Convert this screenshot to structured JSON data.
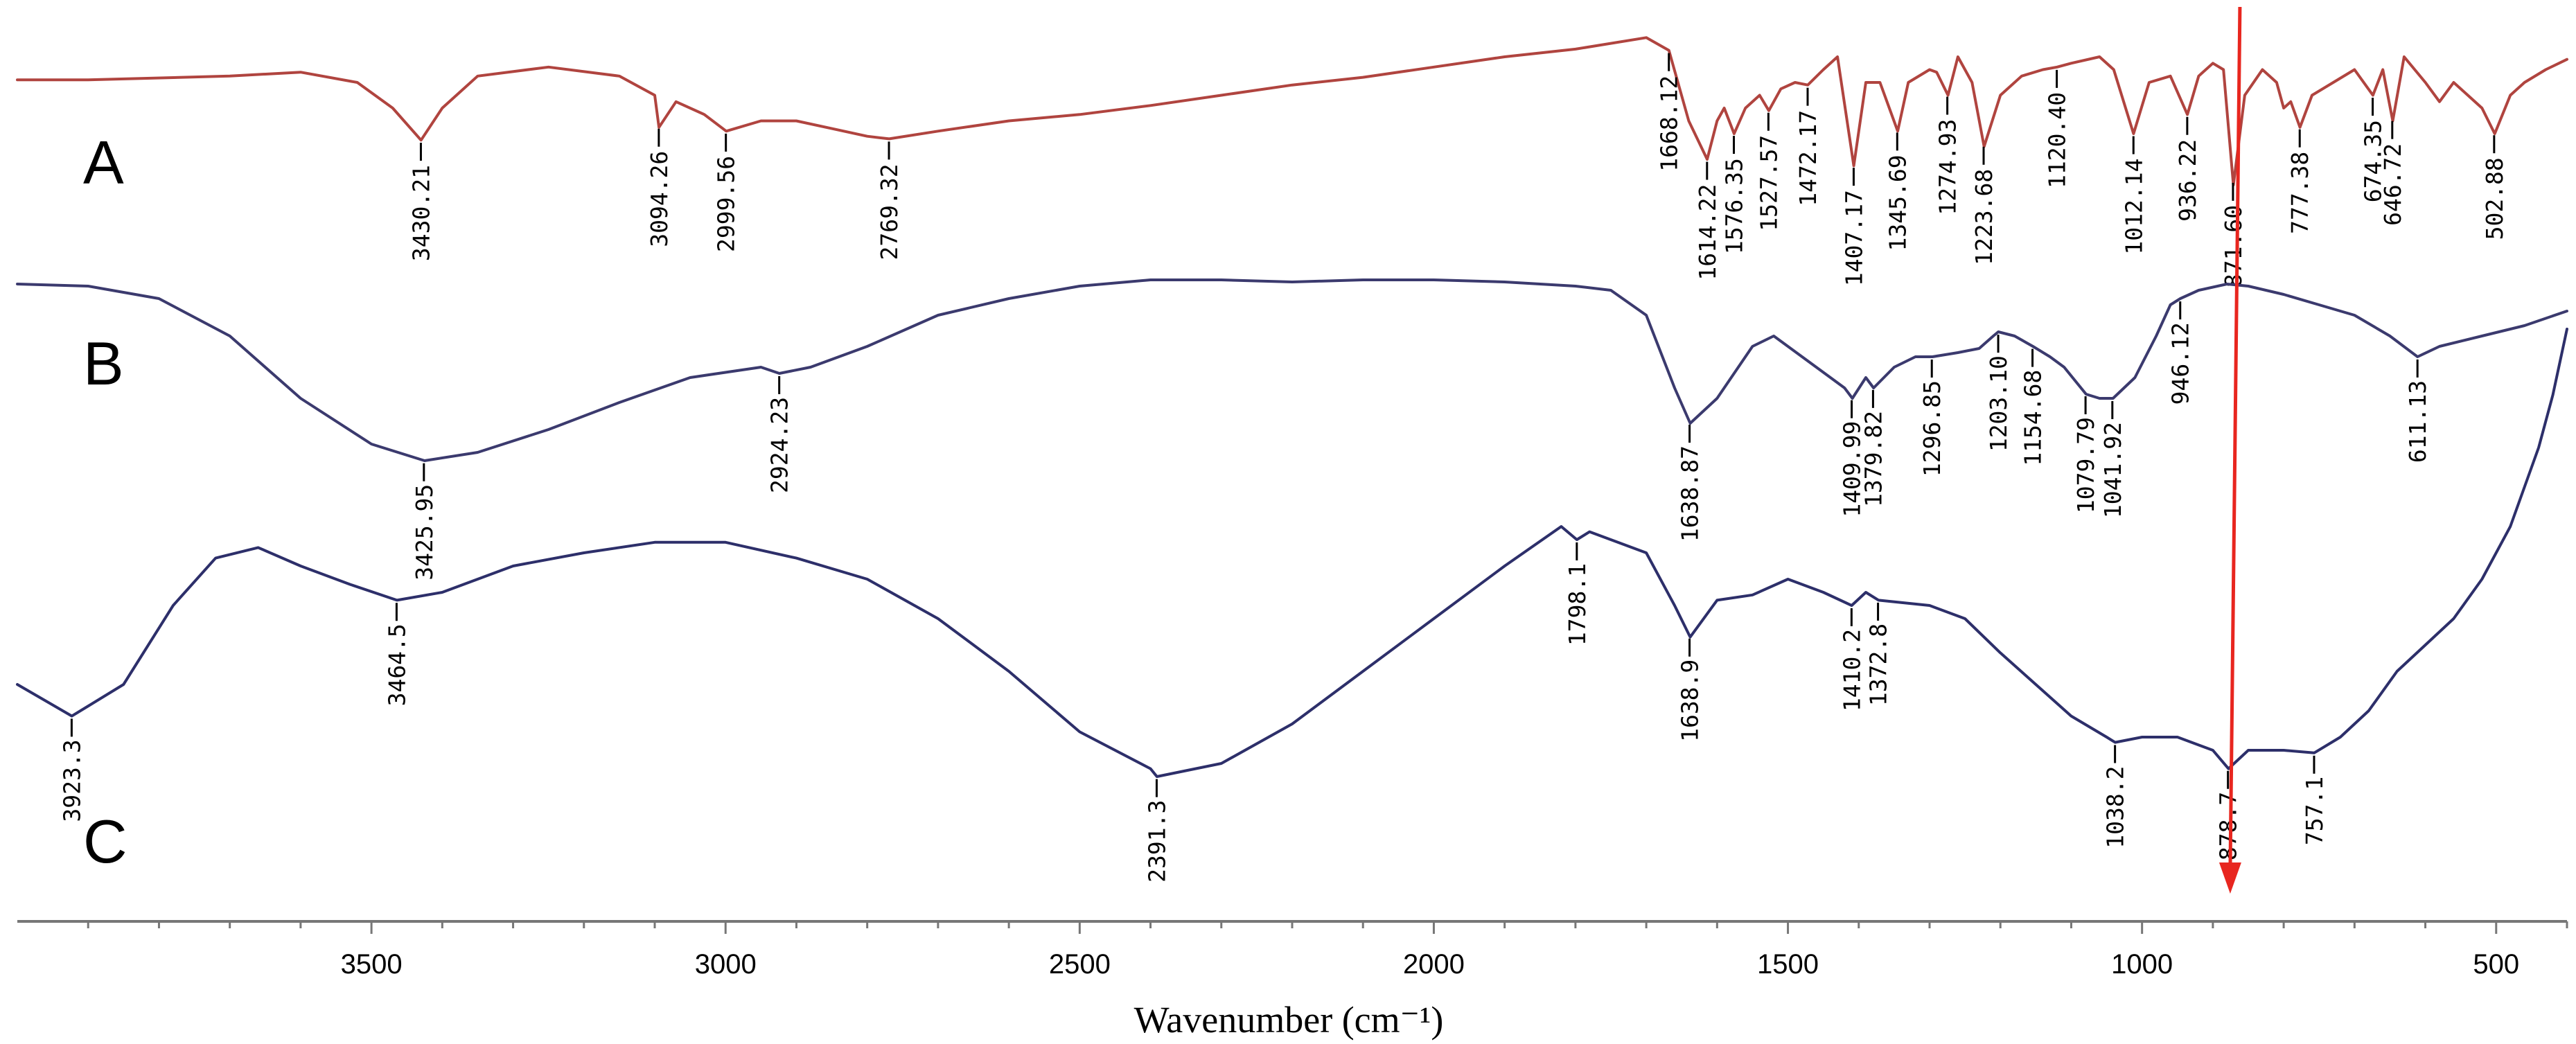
{
  "chart_data": {
    "type": "line",
    "title": "",
    "xlabel": "Wavenumber (cm⁻¹)",
    "ylabel": "",
    "xlim": [
      4000,
      400
    ],
    "x_reversed": true,
    "x_ticks": [
      3500,
      3000,
      2500,
      2000,
      1500,
      1000,
      500
    ],
    "y_axis_shown": false,
    "grid": false,
    "marker_line": {
      "value": 871.6,
      "color": "#e8261f"
    },
    "series": [
      {
        "name": "A",
        "color": "#b0443f",
        "points": [
          [
            4000,
            0.38
          ],
          [
            3900,
            0.38
          ],
          [
            3700,
            0.35
          ],
          [
            3600,
            0.32
          ],
          [
            3520,
            0.4
          ],
          [
            3470,
            0.6
          ],
          [
            3430,
            0.85
          ],
          [
            3400,
            0.6
          ],
          [
            3350,
            0.35
          ],
          [
            3250,
            0.28
          ],
          [
            3150,
            0.35
          ],
          [
            3100,
            0.5
          ],
          [
            3094,
            0.75
          ],
          [
            3070,
            0.55
          ],
          [
            3030,
            0.65
          ],
          [
            2999,
            0.78
          ],
          [
            2950,
            0.7
          ],
          [
            2900,
            0.7
          ],
          [
            2850,
            0.76
          ],
          [
            2800,
            0.82
          ],
          [
            2769,
            0.84
          ],
          [
            2700,
            0.78
          ],
          [
            2600,
            0.7
          ],
          [
            2500,
            0.65
          ],
          [
            2400,
            0.58
          ],
          [
            2300,
            0.5
          ],
          [
            2200,
            0.42
          ],
          [
            2100,
            0.36
          ],
          [
            2000,
            0.28
          ],
          [
            1900,
            0.2
          ],
          [
            1800,
            0.14
          ],
          [
            1700,
            0.05
          ],
          [
            1668,
            0.15
          ],
          [
            1640,
            0.7
          ],
          [
            1614,
            1.0
          ],
          [
            1600,
            0.7
          ],
          [
            1590,
            0.6
          ],
          [
            1576,
            0.8
          ],
          [
            1560,
            0.6
          ],
          [
            1540,
            0.5
          ],
          [
            1527,
            0.62
          ],
          [
            1510,
            0.45
          ],
          [
            1490,
            0.4
          ],
          [
            1472,
            0.42
          ],
          [
            1450,
            0.3
          ],
          [
            1430,
            0.2
          ],
          [
            1407,
            1.05
          ],
          [
            1390,
            0.4
          ],
          [
            1370,
            0.4
          ],
          [
            1345,
            0.78
          ],
          [
            1330,
            0.4
          ],
          [
            1300,
            0.3
          ],
          [
            1290,
            0.32
          ],
          [
            1274,
            0.5
          ],
          [
            1260,
            0.2
          ],
          [
            1240,
            0.4
          ],
          [
            1223,
            0.9
          ],
          [
            1200,
            0.5
          ],
          [
            1170,
            0.35
          ],
          [
            1140,
            0.3
          ],
          [
            1120,
            0.28
          ],
          [
            1100,
            0.25
          ],
          [
            1060,
            0.2
          ],
          [
            1040,
            0.3
          ],
          [
            1012,
            0.8
          ],
          [
            990,
            0.4
          ],
          [
            960,
            0.35
          ],
          [
            936,
            0.65
          ],
          [
            920,
            0.35
          ],
          [
            900,
            0.25
          ],
          [
            885,
            0.3
          ],
          [
            871,
            1.2
          ],
          [
            855,
            0.5
          ],
          [
            830,
            0.3
          ],
          [
            810,
            0.4
          ],
          [
            800,
            0.6
          ],
          [
            790,
            0.55
          ],
          [
            777,
            0.75
          ],
          [
            760,
            0.5
          ],
          [
            730,
            0.4
          ],
          [
            700,
            0.3
          ],
          [
            674,
            0.5
          ],
          [
            660,
            0.3
          ],
          [
            646,
            0.7
          ],
          [
            630,
            0.2
          ],
          [
            600,
            0.4
          ],
          [
            580,
            0.55
          ],
          [
            560,
            0.4
          ],
          [
            540,
            0.5
          ],
          [
            520,
            0.6
          ],
          [
            502,
            0.8
          ],
          [
            480,
            0.5
          ],
          [
            460,
            0.4
          ],
          [
            430,
            0.3
          ],
          [
            400,
            0.22
          ]
        ],
        "peaks": [
          {
            "x": 3430.21,
            "label": "3430.21"
          },
          {
            "x": 3094.26,
            "label": "3094.26"
          },
          {
            "x": 2999.56,
            "label": "2999.56"
          },
          {
            "x": 2769.32,
            "label": "2769.32"
          },
          {
            "x": 1668.12,
            "label": "1668.12"
          },
          {
            "x": 1614.22,
            "label": "1614.22"
          },
          {
            "x": 1576.35,
            "label": "1576.35"
          },
          {
            "x": 1527.57,
            "label": "1527.57"
          },
          {
            "x": 1472.17,
            "label": "1472.17"
          },
          {
            "x": 1407.17,
            "label": "1407.17"
          },
          {
            "x": 1345.69,
            "label": "1345.69"
          },
          {
            "x": 1274.93,
            "label": "1274.93"
          },
          {
            "x": 1223.68,
            "label": "1223.68"
          },
          {
            "x": 1120.4,
            "label": "1120.40"
          },
          {
            "x": 1012.14,
            "label": "1012.14"
          },
          {
            "x": 936.22,
            "label": "936.22"
          },
          {
            "x": 871.6,
            "label": "871.60"
          },
          {
            "x": 777.38,
            "label": "777.38"
          },
          {
            "x": 674.35,
            "label": "674.35"
          },
          {
            "x": 646.72,
            "label": "646.72"
          },
          {
            "x": 502.88,
            "label": "502.88"
          }
        ]
      },
      {
        "name": "B",
        "color": "#3b3a6e",
        "points": [
          [
            4000,
            0.05
          ],
          [
            3900,
            0.06
          ],
          [
            3800,
            0.12
          ],
          [
            3700,
            0.3
          ],
          [
            3600,
            0.6
          ],
          [
            3500,
            0.82
          ],
          [
            3425,
            0.9
          ],
          [
            3350,
            0.86
          ],
          [
            3250,
            0.75
          ],
          [
            3150,
            0.62
          ],
          [
            3050,
            0.5
          ],
          [
            2950,
            0.45
          ],
          [
            2924,
            0.48
          ],
          [
            2880,
            0.45
          ],
          [
            2800,
            0.35
          ],
          [
            2700,
            0.2
          ],
          [
            2600,
            0.12
          ],
          [
            2500,
            0.06
          ],
          [
            2400,
            0.03
          ],
          [
            2300,
            0.03
          ],
          [
            2200,
            0.04
          ],
          [
            2100,
            0.03
          ],
          [
            2000,
            0.03
          ],
          [
            1900,
            0.04
          ],
          [
            1800,
            0.06
          ],
          [
            1750,
            0.08
          ],
          [
            1700,
            0.2
          ],
          [
            1660,
            0.55
          ],
          [
            1638,
            0.72
          ],
          [
            1600,
            0.6
          ],
          [
            1550,
            0.35
          ],
          [
            1520,
            0.3
          ],
          [
            1480,
            0.4
          ],
          [
            1440,
            0.5
          ],
          [
            1420,
            0.55
          ],
          [
            1409,
            0.6
          ],
          [
            1390,
            0.5
          ],
          [
            1379,
            0.55
          ],
          [
            1350,
            0.45
          ],
          [
            1320,
            0.4
          ],
          [
            1296,
            0.4
          ],
          [
            1260,
            0.38
          ],
          [
            1230,
            0.36
          ],
          [
            1210,
            0.3
          ],
          [
            1203,
            0.28
          ],
          [
            1180,
            0.3
          ],
          [
            1154,
            0.35
          ],
          [
            1130,
            0.4
          ],
          [
            1110,
            0.45
          ],
          [
            1079,
            0.58
          ],
          [
            1060,
            0.6
          ],
          [
            1041,
            0.6
          ],
          [
            1010,
            0.5
          ],
          [
            980,
            0.3
          ],
          [
            960,
            0.15
          ],
          [
            946,
            0.12
          ],
          [
            920,
            0.08
          ],
          [
            880,
            0.05
          ],
          [
            850,
            0.06
          ],
          [
            800,
            0.1
          ],
          [
            750,
            0.15
          ],
          [
            700,
            0.2
          ],
          [
            650,
            0.3
          ],
          [
            611,
            0.4
          ],
          [
            580,
            0.35
          ],
          [
            520,
            0.3
          ],
          [
            460,
            0.25
          ],
          [
            400,
            0.18
          ]
        ],
        "peaks": [
          {
            "x": 3425.95,
            "label": "3425.95"
          },
          {
            "x": 2924.23,
            "label": "2924.23"
          },
          {
            "x": 1638.87,
            "label": "1638.87"
          },
          {
            "x": 1409.99,
            "label": "1409.99"
          },
          {
            "x": 1379.82,
            "label": "1379.82"
          },
          {
            "x": 1296.85,
            "label": "1296.85"
          },
          {
            "x": 1203.1,
            "label": "1203.10"
          },
          {
            "x": 1154.68,
            "label": "1154.68"
          },
          {
            "x": 1079.79,
            "label": "1079.79"
          },
          {
            "x": 1041.92,
            "label": "1041.92"
          },
          {
            "x": 946.12,
            "label": "946.12"
          },
          {
            "x": 611.13,
            "label": "611.13"
          }
        ]
      },
      {
        "name": "C",
        "color": "#2d2f6a",
        "points": [
          [
            4000,
            0.6
          ],
          [
            3923,
            0.72
          ],
          [
            3850,
            0.6
          ],
          [
            3780,
            0.3
          ],
          [
            3720,
            0.12
          ],
          [
            3660,
            0.08
          ],
          [
            3600,
            0.15
          ],
          [
            3530,
            0.22
          ],
          [
            3464,
            0.28
          ],
          [
            3400,
            0.25
          ],
          [
            3300,
            0.15
          ],
          [
            3200,
            0.1
          ],
          [
            3100,
            0.06
          ],
          [
            3000,
            0.06
          ],
          [
            2900,
            0.12
          ],
          [
            2800,
            0.2
          ],
          [
            2700,
            0.35
          ],
          [
            2600,
            0.55
          ],
          [
            2500,
            0.78
          ],
          [
            2400,
            0.92
          ],
          [
            2391,
            0.95
          ],
          [
            2300,
            0.9
          ],
          [
            2200,
            0.75
          ],
          [
            2100,
            0.55
          ],
          [
            2000,
            0.35
          ],
          [
            1900,
            0.15
          ],
          [
            1820,
            0.0
          ],
          [
            1798,
            0.05
          ],
          [
            1780,
            0.02
          ],
          [
            1700,
            0.1
          ],
          [
            1660,
            0.3
          ],
          [
            1638,
            0.42
          ],
          [
            1600,
            0.28
          ],
          [
            1550,
            0.26
          ],
          [
            1500,
            0.2
          ],
          [
            1450,
            0.25
          ],
          [
            1410,
            0.3
          ],
          [
            1390,
            0.25
          ],
          [
            1372,
            0.28
          ],
          [
            1300,
            0.3
          ],
          [
            1250,
            0.35
          ],
          [
            1200,
            0.48
          ],
          [
            1150,
            0.6
          ],
          [
            1100,
            0.72
          ],
          [
            1050,
            0.8
          ],
          [
            1038,
            0.82
          ],
          [
            1000,
            0.8
          ],
          [
            950,
            0.8
          ],
          [
            900,
            0.85
          ],
          [
            878,
            0.92
          ],
          [
            850,
            0.85
          ],
          [
            800,
            0.85
          ],
          [
            757,
            0.86
          ],
          [
            720,
            0.8
          ],
          [
            680,
            0.7
          ],
          [
            640,
            0.55
          ],
          [
            600,
            0.45
          ],
          [
            560,
            0.35
          ],
          [
            520,
            0.2
          ],
          [
            480,
            0.0
          ],
          [
            440,
            -0.3
          ],
          [
            420,
            -0.5
          ],
          [
            400,
            -0.75
          ]
        ],
        "peaks": [
          {
            "x": 3923.3,
            "label": "3923.3"
          },
          {
            "x": 3464.5,
            "label": "3464.5"
          },
          {
            "x": 2391.3,
            "label": "2391.3"
          },
          {
            "x": 1798.1,
            "label": "1798.1"
          },
          {
            "x": 1638.9,
            "label": "1638.9"
          },
          {
            "x": 1410.2,
            "label": "1410.2"
          },
          {
            "x": 1372.8,
            "label": "1372.8"
          },
          {
            "x": 1038.2,
            "label": "1038.2"
          },
          {
            "x": 878.7,
            "label": "878.7"
          },
          {
            "x": 757.1,
            "label": "757.1"
          }
        ]
      }
    ]
  }
}
